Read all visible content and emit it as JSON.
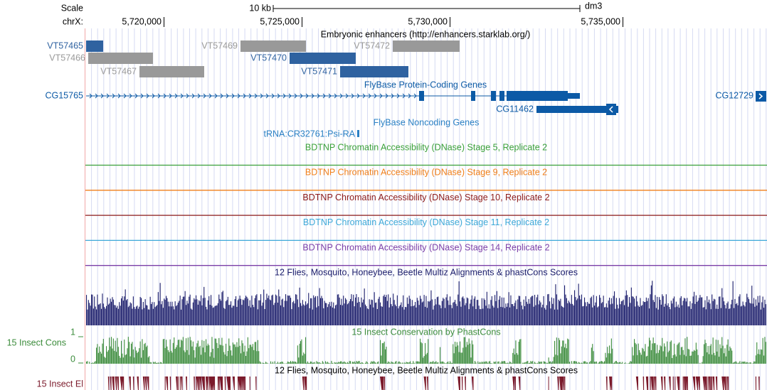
{
  "scale_bar": {
    "label": "Scale",
    "length": "10 kb",
    "assembly": "dm3"
  },
  "ruler": {
    "label": "chrX:",
    "ticks": [
      "5,720,000",
      "5,725,000",
      "5,730,000",
      "5,735,000"
    ]
  },
  "enhancers": {
    "title": "Embryonic enhancers (http://enhancers.starklab.org/)",
    "items": [
      {
        "label": "VT57465",
        "color": "#2f62a0"
      },
      {
        "label": "VT57466",
        "color": "#999999"
      },
      {
        "label": "VT57467",
        "color": "#999999"
      },
      {
        "label": "VT57469",
        "color": "#999999"
      },
      {
        "label": "VT57470",
        "color": "#2f62a0"
      },
      {
        "label": "VT57472",
        "color": "#999999"
      },
      {
        "label": "VT57471",
        "color": "#2f62a0"
      }
    ]
  },
  "genes": {
    "title": "FlyBase Protein-Coding Genes",
    "color": "#0c5aa6",
    "items": [
      "CG15765",
      "CG12729",
      "CG11462"
    ]
  },
  "noncoding": {
    "title": "FlyBase Noncoding Genes",
    "color": "#2a80c4",
    "items": [
      "tRNA:CR32761:Psi-RA"
    ]
  },
  "dnase_tracks": [
    {
      "title": "BDTNP Chromatin Accessibility (DNase) Stage 5, Replicate 2",
      "color": "#3aa03a"
    },
    {
      "title": "BDTNP Chromatin Accessibility (DNase) Stage 9, Replicate 2",
      "color": "#f07f1a"
    },
    {
      "title": "BDTNP Chromatin Accessibility (DNase) Stage 10, Replicate 2",
      "color": "#8b1a1a"
    },
    {
      "title": "BDTNP Chromatin Accessibility (DNase) Stage 11, Replicate 2",
      "color": "#3ca8d8"
    },
    {
      "title": "BDTNP Chromatin Accessibility (DNase) Stage 14, Replicate 2",
      "color": "#7b3fa8"
    }
  ],
  "multiz": {
    "title": "12 Flies, Mosquito, Honeybee, Beetle Multiz Alignments & phastCons Scores",
    "color": "#1b1d6b"
  },
  "phastcons": {
    "title": "15 Insect Conservation by PhastCons",
    "side_label": "15 Insect Cons",
    "axis_max": 1,
    "axis_min": 0,
    "color": "#3c8c3c"
  },
  "elements": {
    "title": "12 Flies, Mosquito, Honeybee, Beetle Multiz Alignments & phastCons Scores",
    "side_label": "15 Insect El",
    "color": "#7b1a2b"
  }
}
